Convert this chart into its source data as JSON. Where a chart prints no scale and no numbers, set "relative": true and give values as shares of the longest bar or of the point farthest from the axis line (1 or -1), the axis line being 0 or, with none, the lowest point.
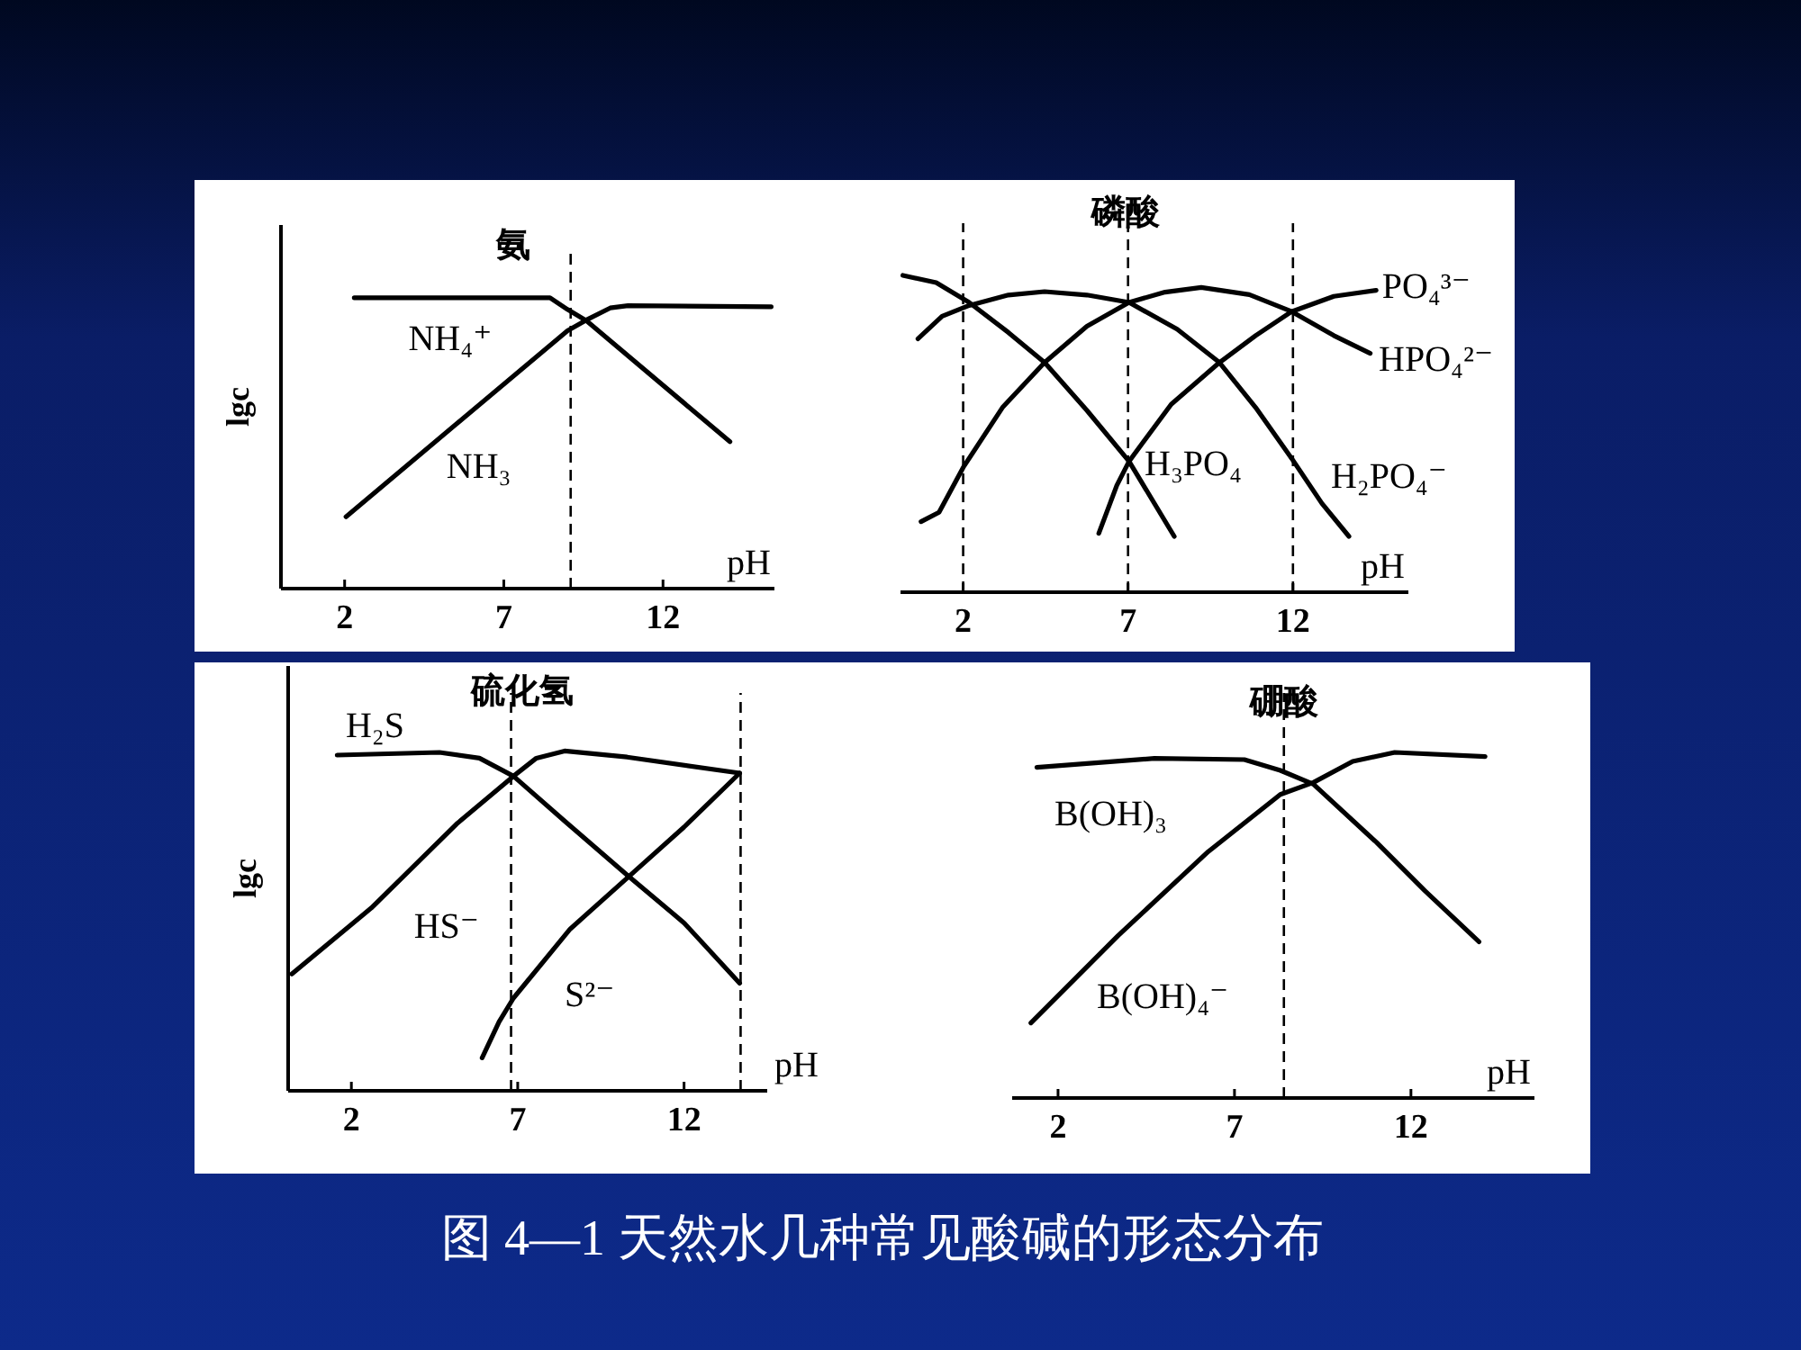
{
  "chart_data": [
    {
      "type": "line",
      "title": "氨",
      "xlabel": "pH",
      "ylabel": "lgc",
      "relative": true,
      "xlim": [
        0,
        15.5
      ],
      "xticks": [
        2,
        7,
        12
      ],
      "series": [
        {
          "name": "NH₄⁺",
          "color": "#000000",
          "x": [
            2.3,
            8.45,
            9.0,
            9.6,
            14.1
          ],
          "values": [
            1.0,
            1.0,
            0.96,
            0.92,
            0.505
          ]
        },
        {
          "name": "NH₃",
          "color": "#000000",
          "x": [
            2.04,
            9.0,
            9.6,
            10.34,
            10.9,
            15.4
          ],
          "values": [
            0.247,
            0.887,
            0.924,
            0.965,
            0.973,
            0.969
          ]
        }
      ],
      "ref_lines": [
        {
          "axis": "x",
          "value": 9.1,
          "color": "#000000",
          "line_style": "dashed"
        }
      ]
    },
    {
      "type": "line",
      "title": "磷酸",
      "xlabel": "pH",
      "relative": true,
      "xlim": [
        0.1,
        15.5
      ],
      "xticks": [
        2,
        7,
        12
      ],
      "series": [
        {
          "name": "H₃PO₄",
          "color": "#000000",
          "x": [
            0.17,
            1.18,
            2.18,
            3.37,
            4.47,
            5.75,
            7.03,
            8.4
          ],
          "values": [
            1.0,
            0.977,
            0.915,
            0.82,
            0.725,
            0.574,
            0.413,
            0.176
          ]
        },
        {
          "name": "H₂PO₄⁻",
          "color": "#000000",
          "x": [
            0.63,
            1.36,
            2.18,
            3.37,
            4.47,
            5.75,
            7.03,
            8.49,
            9.77,
            10.87,
            11.96,
            12.88,
            13.7
          ],
          "values": [
            0.8,
            0.871,
            0.905,
            0.938,
            0.949,
            0.938,
            0.915,
            0.83,
            0.725,
            0.583,
            0.422,
            0.28,
            0.176
          ]
        },
        {
          "name": "HPO₄²⁻",
          "color": "#000000",
          "x": [
            0.72,
            1.27,
            2.0,
            3.19,
            4.47,
            5.75,
            7.03,
            8.12,
            9.22,
            10.68,
            11.96,
            13.24,
            14.34
          ],
          "values": [
            0.223,
            0.252,
            0.394,
            0.583,
            0.725,
            0.839,
            0.915,
            0.947,
            0.962,
            0.939,
            0.886,
            0.81,
            0.754
          ]
        },
        {
          "name": "PO₄³⁻",
          "color": "#000000",
          "x": [
            6.11,
            6.66,
            7.03,
            8.31,
            9.77,
            10.87,
            11.96,
            13.24,
            14.52
          ],
          "values": [
            0.186,
            0.337,
            0.413,
            0.593,
            0.725,
            0.81,
            0.886,
            0.934,
            0.953
          ]
        }
      ],
      "ref_lines": [
        {
          "axis": "x",
          "value": 2.0,
          "color": "#000000",
          "line_style": "dashed"
        },
        {
          "axis": "x",
          "value": 7.0,
          "color": "#000000",
          "line_style": "dashed"
        },
        {
          "axis": "x",
          "value": 12.0,
          "color": "#000000",
          "line_style": "dashed"
        }
      ]
    },
    {
      "type": "line",
      "title": "硫化氢",
      "xlabel": "pH",
      "ylabel": "lgc",
      "relative": true,
      "xlim": [
        0.1,
        14.5
      ],
      "xticks": [
        2,
        7,
        12
      ],
      "series": [
        {
          "name": "H₂S",
          "color": "#000000",
          "x": [
            1.57,
            4.65,
            5.85,
            6.87,
            8.41,
            10.29,
            12.0,
            13.67
          ],
          "values": [
            0.988,
            0.996,
            0.979,
            0.926,
            0.794,
            0.635,
            0.494,
            0.317
          ]
        },
        {
          "name": "HS⁻",
          "color": "#000000",
          "x": [
            0.21,
            2.6,
            5.16,
            6.87,
            7.56,
            8.41,
            10.29,
            13.67
          ],
          "values": [
            0.344,
            0.538,
            0.785,
            0.926,
            0.979,
            1.0,
            0.982,
            0.935
          ]
        },
        {
          "name": "S²⁻",
          "color": "#000000",
          "x": [
            5.93,
            6.44,
            6.87,
            8.58,
            10.29,
            12.0,
            13.67
          ],
          "values": [
            0.097,
            0.203,
            0.273,
            0.476,
            0.626,
            0.776,
            0.935
          ]
        }
      ],
      "ref_lines": [
        {
          "axis": "x",
          "value": 6.8,
          "color": "#000000",
          "line_style": "dashed"
        },
        {
          "axis": "x",
          "value": 13.7,
          "color": "#000000",
          "line_style": "dashed"
        }
      ]
    },
    {
      "type": "line",
      "title": "硼酸",
      "xlabel": "pH",
      "relative": true,
      "xlim": [
        0.7,
        15.5
      ],
      "xticks": [
        2,
        7,
        12
      ],
      "series": [
        {
          "name": "B(OH)₃",
          "color": "#000000",
          "x": [
            1.4,
            4.73,
            7.28,
            8.3,
            9.24,
            11.03,
            12.39,
            13.93
          ],
          "values": [
            0.957,
            0.983,
            0.979,
            0.948,
            0.908,
            0.739,
            0.6,
            0.452
          ]
        },
        {
          "name": "B(OH)₄⁻",
          "color": "#000000",
          "x": [
            1.23,
            3.7,
            6.26,
            8.3,
            9.24,
            10.35,
            11.54,
            14.1
          ],
          "values": [
            0.217,
            0.47,
            0.713,
            0.878,
            0.913,
            0.974,
            1.0,
            0.988
          ]
        }
      ],
      "ref_lines": [
        {
          "axis": "x",
          "value": 8.4,
          "color": "#000000",
          "line_style": "dashed"
        }
      ]
    },
    {
      "type": "other",
      "title": "图 4—1  天然水几种常见酸碱的形态分布"
    }
  ]
}
